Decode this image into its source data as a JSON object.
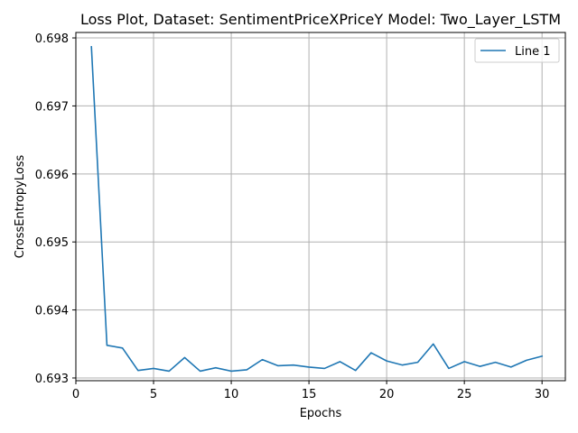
{
  "chart_data": {
    "type": "line",
    "title": "Loss Plot, Dataset: SentimentPriceXPriceY Model: Two_Layer_LSTM",
    "xlabel": "Epochs",
    "ylabel": "CrossEntropyLoss",
    "xlim": [
      0,
      31.5
    ],
    "ylim": [
      0.69296,
      0.69808
    ],
    "xticks": [
      0,
      5,
      10,
      15,
      20,
      25,
      30
    ],
    "yticks": [
      0.693,
      0.694,
      0.695,
      0.696,
      0.697,
      0.698
    ],
    "xtick_labels": [
      "0",
      "5",
      "10",
      "15",
      "20",
      "25",
      "30"
    ],
    "ytick_labels": [
      "0.693",
      "0.694",
      "0.695",
      "0.696",
      "0.697",
      "0.698"
    ],
    "grid": true,
    "legend_position": "top-right",
    "series": [
      {
        "name": "Line 1",
        "color": "#1f77b4",
        "x": [
          1,
          2,
          3,
          4,
          5,
          6,
          7,
          8,
          9,
          10,
          11,
          12,
          13,
          14,
          15,
          16,
          17,
          18,
          19,
          20,
          21,
          22,
          23,
          24,
          25,
          26,
          27,
          28,
          29,
          30
        ],
        "y": [
          0.69787,
          0.69348,
          0.69344,
          0.69311,
          0.69314,
          0.6931,
          0.6933,
          0.6931,
          0.69315,
          0.6931,
          0.69312,
          0.69327,
          0.69318,
          0.69319,
          0.69316,
          0.69314,
          0.69324,
          0.69311,
          0.69337,
          0.69325,
          0.69319,
          0.69323,
          0.6935,
          0.69314,
          0.69324,
          0.69317,
          0.69323,
          0.69316,
          0.69326,
          0.69332
        ]
      }
    ]
  }
}
